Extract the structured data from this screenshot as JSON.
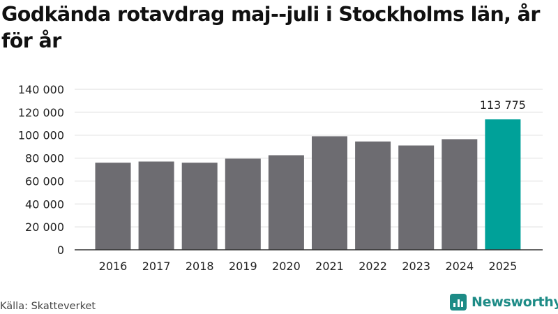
{
  "title": "Godkända rotavdrag maj--juli i Stockholms län, år för år",
  "source": "Källa: Skatteverket",
  "brand": {
    "name": "Newsworthy",
    "icon": "bar-chart-logo-icon"
  },
  "colors": {
    "bar": "#6d6c71",
    "highlight": "#00a199",
    "brand": "#1d8b86",
    "grid": "#dddddd",
    "axis": "#333333"
  },
  "chart_data": {
    "type": "bar",
    "title": "Godkända rotavdrag maj--juli i Stockholms län, år för år",
    "xlabel": "",
    "ylabel": "",
    "categories": [
      "2016",
      "2017",
      "2018",
      "2019",
      "2020",
      "2021",
      "2022",
      "2023",
      "2024",
      "2025"
    ],
    "values": [
      76000,
      77000,
      76000,
      79500,
      82500,
      99000,
      94500,
      91000,
      96500,
      113775
    ],
    "highlight_index": 9,
    "annotation": {
      "category": "2025",
      "label": "113 775"
    },
    "ylim": [
      0,
      140000
    ],
    "yticks": [
      0,
      20000,
      40000,
      60000,
      80000,
      100000,
      120000,
      140000
    ],
    "ytick_labels": [
      "0",
      "20 000",
      "40 000",
      "60 000",
      "80 000",
      "100 000",
      "120 000",
      "140 000"
    ],
    "grid": true,
    "legend": "none"
  }
}
